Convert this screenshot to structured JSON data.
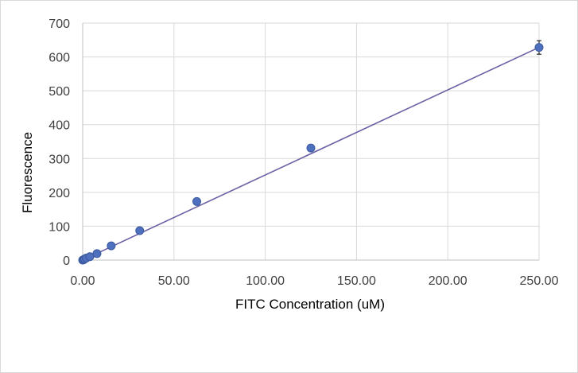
{
  "chart_data": {
    "type": "scatter",
    "title": "",
    "xlabel": "FITC Concentration (uM)",
    "ylabel": "Fluorescence",
    "xlim": [
      0,
      250
    ],
    "ylim": [
      0,
      700
    ],
    "x_ticks": [
      0,
      50,
      100,
      150,
      200,
      250
    ],
    "x_tick_labels": [
      "0.00",
      "50.00",
      "100.00",
      "150.00",
      "200.00",
      "250.00"
    ],
    "y_ticks": [
      0,
      100,
      200,
      300,
      400,
      500,
      600,
      700
    ],
    "y_tick_labels": [
      "0",
      "100",
      "200",
      "300",
      "400",
      "500",
      "600",
      "700"
    ],
    "grid": true,
    "legend": "none",
    "series": [
      {
        "x": [
          0.0,
          0.49,
          0.98,
          1.95,
          3.91,
          7.81,
          15.63,
          31.25,
          62.5,
          125,
          250
        ],
        "y": [
          0,
          1,
          3,
          6,
          10,
          19,
          42,
          87,
          173,
          331,
          628
        ],
        "error_y": [
          0,
          0,
          0,
          0,
          0,
          0,
          0,
          0,
          0,
          0,
          20
        ],
        "marker_color": "#4f6fbf",
        "marker_edge_color": "#3a5a9e",
        "trendline": {
          "type": "linear",
          "color": "#6b62a4",
          "slope": 2.513,
          "intercept": 0
        }
      }
    ]
  },
  "colors": {
    "gridline": "#d9d9d9",
    "axis_line": "#bfbfbf",
    "border": "#d9d9d9"
  }
}
